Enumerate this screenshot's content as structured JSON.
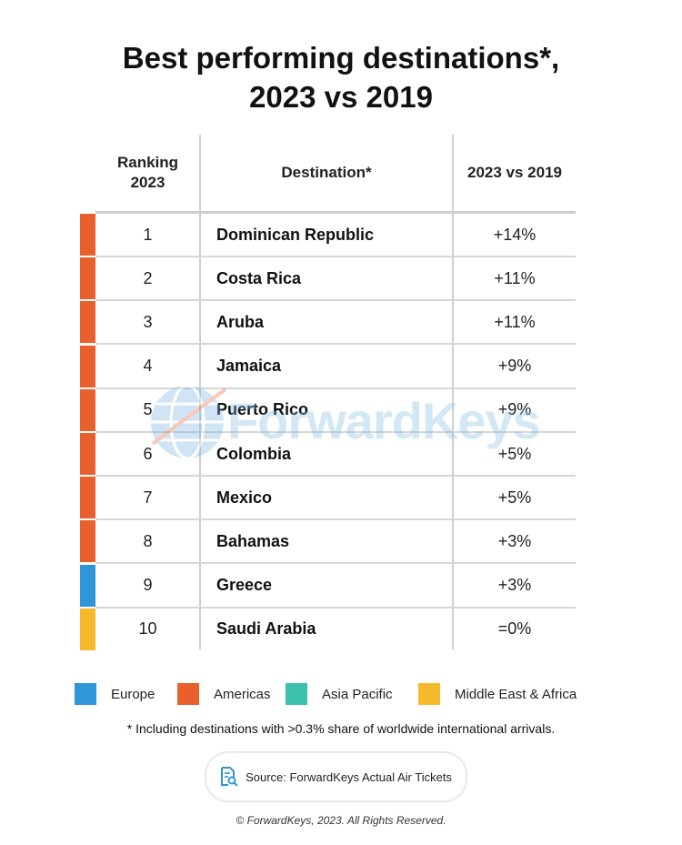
{
  "title": {
    "line1": "Best performing destinations*,",
    "line2": "2023 vs 2019"
  },
  "table": {
    "headers": {
      "rank_line1": "Ranking",
      "rank_line2": "2023",
      "destination": "Destination*",
      "change": "2023 vs 2019"
    },
    "rows": [
      {
        "rank": "1",
        "destination": "Dominican Republic",
        "change": "+14%",
        "region": "Americas"
      },
      {
        "rank": "2",
        "destination": "Costa Rica",
        "change": "+11%",
        "region": "Americas"
      },
      {
        "rank": "3",
        "destination": "Aruba",
        "change": "+11%",
        "region": "Americas"
      },
      {
        "rank": "4",
        "destination": "Jamaica",
        "change": "+9%",
        "region": "Americas"
      },
      {
        "rank": "5",
        "destination": "Puerto Rico",
        "change": "+9%",
        "region": "Americas"
      },
      {
        "rank": "6",
        "destination": "Colombia",
        "change": "+5%",
        "region": "Americas"
      },
      {
        "rank": "7",
        "destination": "Mexico",
        "change": "+5%",
        "region": "Americas"
      },
      {
        "rank": "8",
        "destination": "Bahamas",
        "change": "+3%",
        "region": "Americas"
      },
      {
        "rank": "9",
        "destination": "Greece",
        "change": "+3%",
        "region": "Europe"
      },
      {
        "rank": "10",
        "destination": "Saudi Arabia",
        "change": "=0%",
        "region": "Middle East & Africa"
      }
    ]
  },
  "legend": [
    {
      "label": "Europe",
      "color": "#2f96d8"
    },
    {
      "label": "Americas",
      "color": "#e8612c"
    },
    {
      "label": "Asia Pacific",
      "color": "#3dbfad"
    },
    {
      "label": "Middle East & Africa",
      "color": "#f6b92b"
    }
  ],
  "watermark": {
    "text": "ForwardKeys",
    "icon": "globe-logo-icon"
  },
  "footnote": "* Including destinations with >0.3% share of worldwide international arrivals.",
  "source": {
    "text": "Source: ForwardKeys Actual Air Tickets",
    "icon": "document-search-icon",
    "icon_color": "#2f96d8"
  },
  "copyright": "© ForwardKeys, 2023. All Rights Reserved."
}
